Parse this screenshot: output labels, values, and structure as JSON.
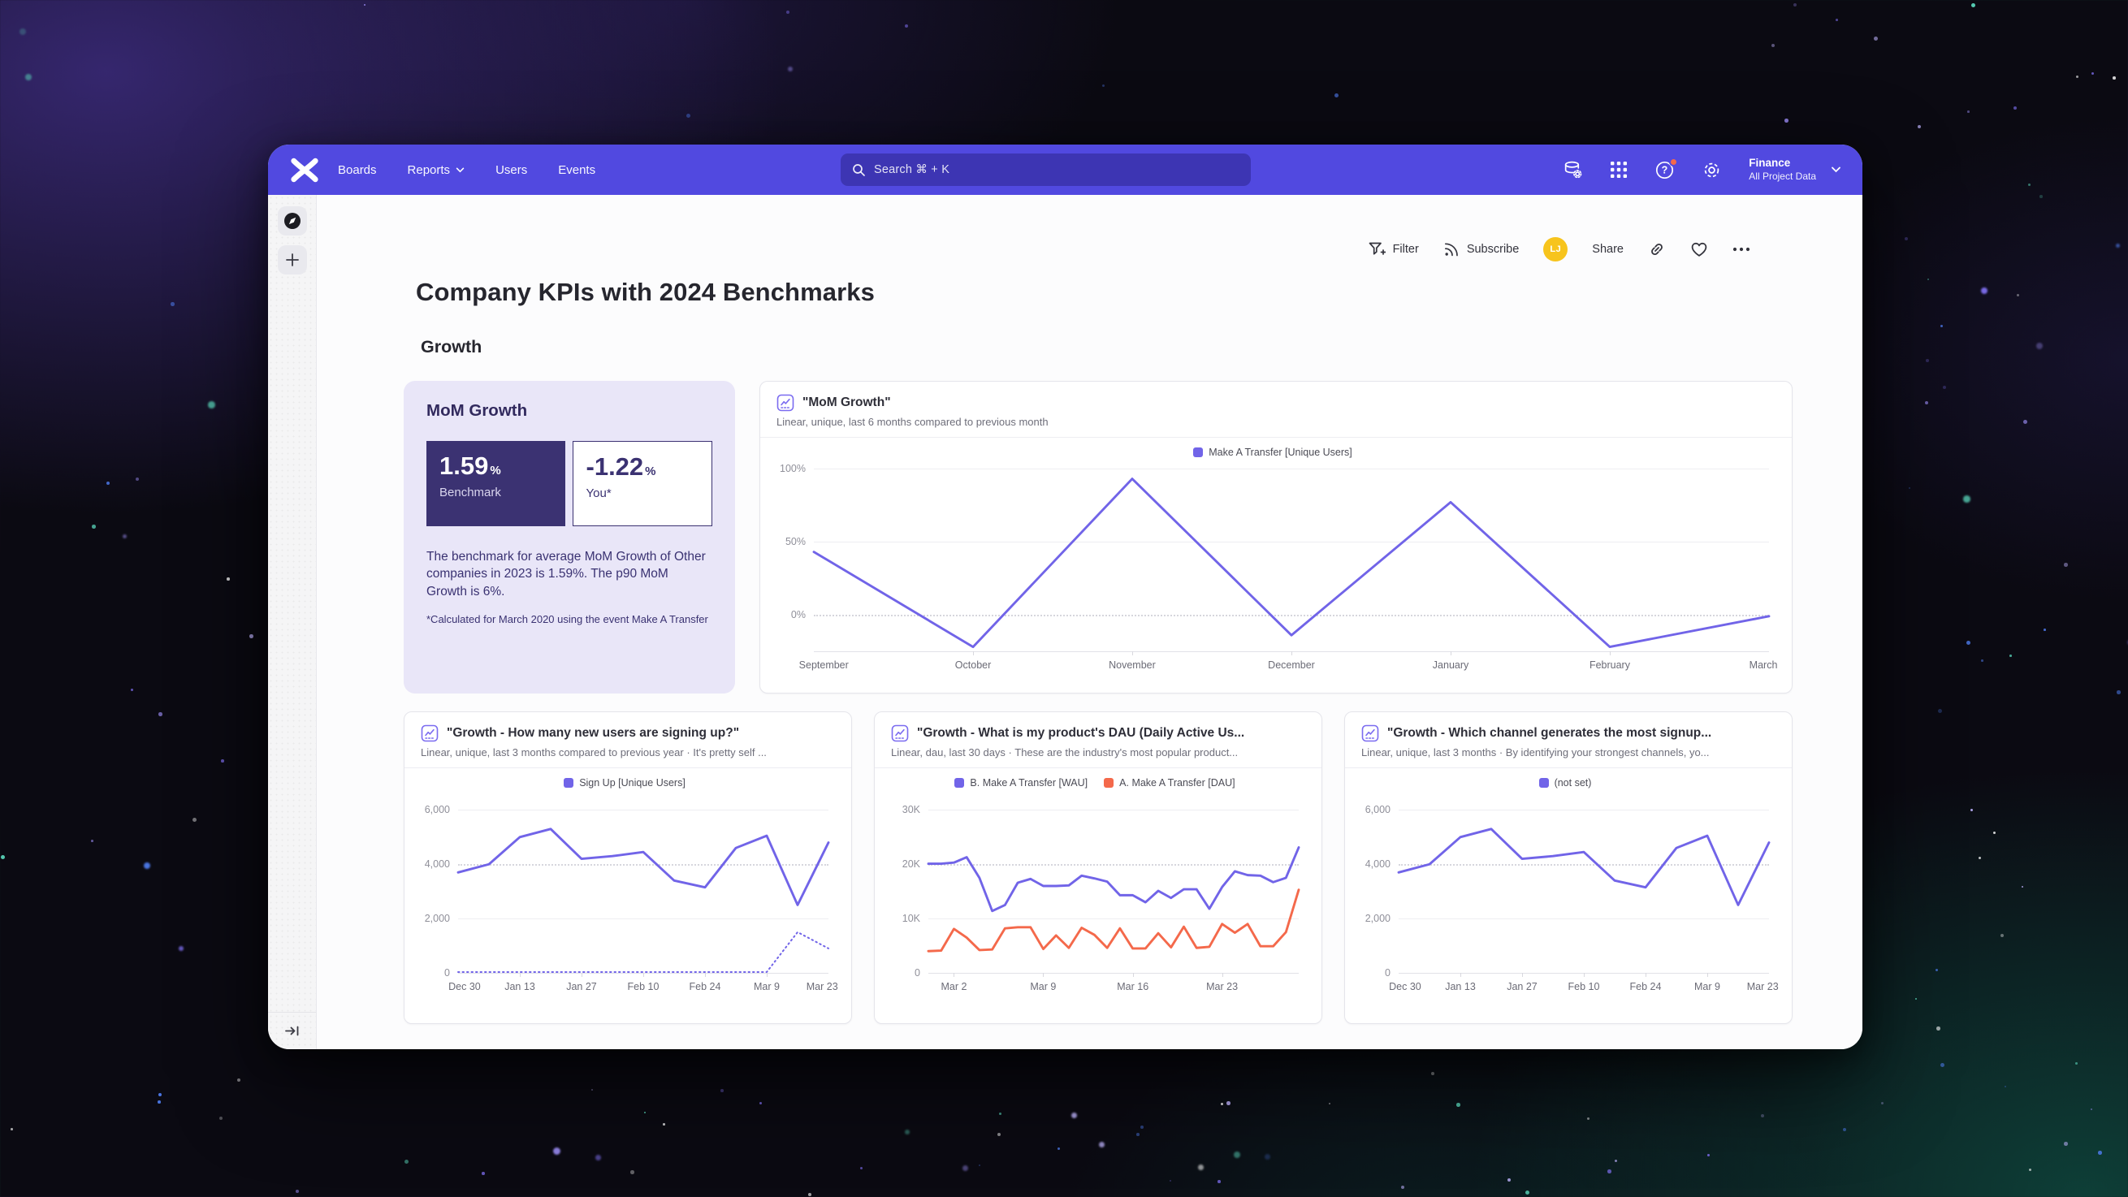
{
  "theme": {
    "nav_purple": "#5149e0",
    "line_purple": "#7164e8",
    "line_orange": "#f4694b",
    "card_lavender": "#e9e6f8",
    "stat_dark": "#3b3272",
    "avatar_yellow": "#f7c41d",
    "notification_orange": "#f4694b"
  },
  "navbar": {
    "items": [
      {
        "label": "Boards"
      },
      {
        "label": "Reports",
        "has_dropdown": true
      },
      {
        "label": "Users"
      },
      {
        "label": "Events"
      }
    ],
    "search": {
      "placeholder": "Search  ⌘ + K"
    },
    "icons": [
      "data-management-icon",
      "apps-grid-icon",
      "help-icon",
      "settings-gear-icon"
    ],
    "project": {
      "name": "Finance",
      "scope": "All Project Data"
    }
  },
  "sidebar": {
    "icons": [
      "compass-icon",
      "add-board-icon",
      "expand-sidebar-icon"
    ]
  },
  "toolbar": {
    "filter_label": "Filter",
    "subscribe_label": "Subscribe",
    "avatar_initials": "LJ",
    "share_label": "Share",
    "icons": [
      "filter-funnel-icon",
      "rss-icon",
      "link-icon",
      "heart-icon",
      "more-ellipsis-icon"
    ]
  },
  "page": {
    "title": "Company KPIs with 2024 Benchmarks",
    "section": "Growth"
  },
  "benchmark_card": {
    "title": "MoM Growth",
    "benchmark": {
      "value": "1.59",
      "unit": "%",
      "label": "Benchmark"
    },
    "you": {
      "value": "-1.22",
      "unit": "%",
      "label": "You*"
    },
    "body": "The benchmark for average MoM Growth of Other companies in 2023 is 1.59%. The p90 MoM Growth is 6%.",
    "footnote": "*Calculated for March 2020 using the event Make A Transfer"
  },
  "chart_data": [
    {
      "type": "line",
      "title": "\"MoM Growth\"",
      "subtitle": "Linear, unique, last 6 months compared to previous month",
      "legend": [
        {
          "label": "Make A Transfer [Unique Users]",
          "color": "#7164e8"
        }
      ],
      "ylim": [
        -25,
        100
      ],
      "y_ticks": [
        {
          "value": 100,
          "label": "100%"
        },
        {
          "value": 50,
          "label": "50%"
        },
        {
          "value": 0,
          "label": "0%",
          "dotted": true
        }
      ],
      "x_ticks": [
        {
          "pos": 0,
          "label": "September"
        },
        {
          "pos": 0.1667,
          "label": "October"
        },
        {
          "pos": 0.3333,
          "label": "November"
        },
        {
          "pos": 0.5,
          "label": "December"
        },
        {
          "pos": 0.6667,
          "label": "January"
        },
        {
          "pos": 0.8333,
          "label": "February"
        },
        {
          "pos": 1,
          "label": "March"
        }
      ],
      "series": [
        {
          "name": "Make A Transfer [Unique Users]",
          "color": "#7164e8",
          "values": [
            43,
            -22,
            93,
            -14,
            77,
            -22,
            -1
          ]
        }
      ]
    },
    {
      "type": "line",
      "title": "\"Growth - How many new users are signing up?\"",
      "subtitle": "Linear, unique, last 3 months compared to previous year · It's pretty self ...",
      "legend": [
        {
          "label": "Sign Up [Unique Users]",
          "color": "#7164e8"
        }
      ],
      "ylim": [
        0,
        6400
      ],
      "y_ticks": [
        {
          "value": 6000,
          "label": "6,000"
        },
        {
          "value": 4000,
          "label": "4,000",
          "dotted": true
        },
        {
          "value": 2000,
          "label": "2,000"
        },
        {
          "value": 0,
          "label": "0"
        }
      ],
      "x_ticks": [
        {
          "pos": 0,
          "label": "Dec 30"
        },
        {
          "pos": 0.1667,
          "label": "Jan 13"
        },
        {
          "pos": 0.3333,
          "label": "Jan 27"
        },
        {
          "pos": 0.5,
          "label": "Feb 10"
        },
        {
          "pos": 0.6667,
          "label": "Feb 24"
        },
        {
          "pos": 0.8333,
          "label": "Mar 9"
        },
        {
          "pos": 1,
          "label": "Mar 23"
        }
      ],
      "series": [
        {
          "name": "Sign Up [Unique Users]",
          "color": "#7164e8",
          "values": [
            3700,
            4000,
            5000,
            5300,
            4200,
            4300,
            4450,
            3400,
            3150,
            4600,
            5050,
            2500,
            4800
          ]
        },
        {
          "name": "Sign Up [Unique Users] (previous year)",
          "color": "#7164e8",
          "dotted": true,
          "values": [
            30,
            30,
            30,
            30,
            30,
            30,
            30,
            30,
            30,
            30,
            30,
            1500,
            900
          ]
        }
      ]
    },
    {
      "type": "line",
      "title": "\"Growth - What is my product's DAU (Daily Active Us...",
      "subtitle": "Linear, dau, last 30 days · These are the industry's most popular product...",
      "legend": [
        {
          "label": "B. Make A Transfer [WAU]",
          "color": "#7164e8"
        },
        {
          "label": "A. Make A Transfer [DAU]",
          "color": "#f4694b"
        }
      ],
      "ylim": [
        0,
        32000
      ],
      "y_ticks": [
        {
          "value": 30000,
          "label": "30K"
        },
        {
          "value": 20000,
          "label": "20K",
          "dotted": true
        },
        {
          "value": 10000,
          "label": "10K"
        },
        {
          "value": 0,
          "label": "0"
        }
      ],
      "x_ticks": [
        {
          "pos": 0.069,
          "label": "Mar 2"
        },
        {
          "pos": 0.31,
          "label": "Mar 9"
        },
        {
          "pos": 0.552,
          "label": "Mar 16"
        },
        {
          "pos": 0.793,
          "label": "Mar 23"
        }
      ],
      "series": [
        {
          "name": "B. Make A Transfer [WAU]",
          "color": "#7164e8",
          "values": [
            20100,
            20100,
            20300,
            21300,
            17500,
            11400,
            12500,
            16600,
            17300,
            16000,
            16000,
            16100,
            17900,
            17400,
            16800,
            14300,
            14300,
            13000,
            15100,
            13800,
            15400,
            15400,
            11800,
            15800,
            18700,
            18000,
            17900,
            16700,
            17500,
            23100
          ]
        },
        {
          "name": "A. Make A Transfer [DAU]",
          "color": "#f4694b",
          "values": [
            4000,
            4100,
            8100,
            6500,
            4200,
            4300,
            8200,
            8400,
            8400,
            4400,
            6900,
            4600,
            8300,
            7000,
            4600,
            8200,
            4500,
            4500,
            7300,
            4700,
            8500,
            4600,
            4800,
            9000,
            7400,
            9000,
            4900,
            4900,
            7500,
            15300
          ]
        }
      ]
    },
    {
      "type": "line",
      "title": "\"Growth - Which channel generates the most signup...",
      "subtitle": "Linear, unique, last 3 months · By identifying your strongest channels, yo...",
      "legend": [
        {
          "label": "(not set)",
          "color": "#7164e8"
        }
      ],
      "ylim": [
        0,
        6400
      ],
      "y_ticks": [
        {
          "value": 6000,
          "label": "6,000"
        },
        {
          "value": 4000,
          "label": "4,000",
          "dotted": true
        },
        {
          "value": 2000,
          "label": "2,000"
        },
        {
          "value": 0,
          "label": "0"
        }
      ],
      "x_ticks": [
        {
          "pos": 0,
          "label": "Dec 30"
        },
        {
          "pos": 0.1667,
          "label": "Jan 13"
        },
        {
          "pos": 0.3333,
          "label": "Jan 27"
        },
        {
          "pos": 0.5,
          "label": "Feb 10"
        },
        {
          "pos": 0.6667,
          "label": "Feb 24"
        },
        {
          "pos": 0.8333,
          "label": "Mar 9"
        },
        {
          "pos": 1,
          "label": "Mar 23"
        }
      ],
      "series": [
        {
          "name": "(not set)",
          "color": "#7164e8",
          "values": [
            3700,
            4000,
            5000,
            5300,
            4200,
            4300,
            4450,
            3400,
            3150,
            4600,
            5050,
            2500,
            4800
          ]
        }
      ]
    }
  ]
}
